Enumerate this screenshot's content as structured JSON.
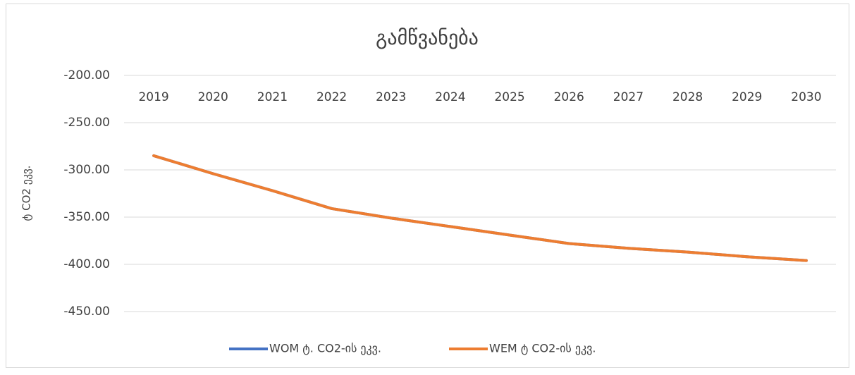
{
  "chart_data": {
    "type": "line",
    "title": "გამწვანება",
    "y_label": "ტ CO2 ეკვ.",
    "categories": [
      "2019",
      "2020",
      "2021",
      "2022",
      "2023",
      "2024",
      "2025",
      "2026",
      "2027",
      "2028",
      "2029",
      "2030"
    ],
    "series": [
      {
        "name": "WOM ტ. CO2-ის ეკვ.",
        "color": "#4472c4",
        "values": [
          -285,
          -304,
          -322,
          -341,
          -351,
          -360,
          -369,
          -378,
          -383,
          -387,
          -392,
          -396
        ]
      },
      {
        "name": "WEM ტ CO2-ის ეკვ.",
        "color": "#ed7d31",
        "values": [
          -285,
          -304,
          -322,
          -341,
          -351,
          -360,
          -369,
          -378,
          -383,
          -387,
          -392,
          -396
        ]
      }
    ],
    "ylim": [
      -450,
      -200
    ],
    "yticks": [
      {
        "value": -450,
        "label": "-450.00"
      },
      {
        "value": -400,
        "label": "-400.00"
      },
      {
        "value": -350,
        "label": "-350.00"
      },
      {
        "value": -300,
        "label": "-300.00"
      },
      {
        "value": -250,
        "label": "-250.00"
      },
      {
        "value": -200,
        "label": "-200.00"
      }
    ],
    "grid": true,
    "legend": "bottom"
  }
}
